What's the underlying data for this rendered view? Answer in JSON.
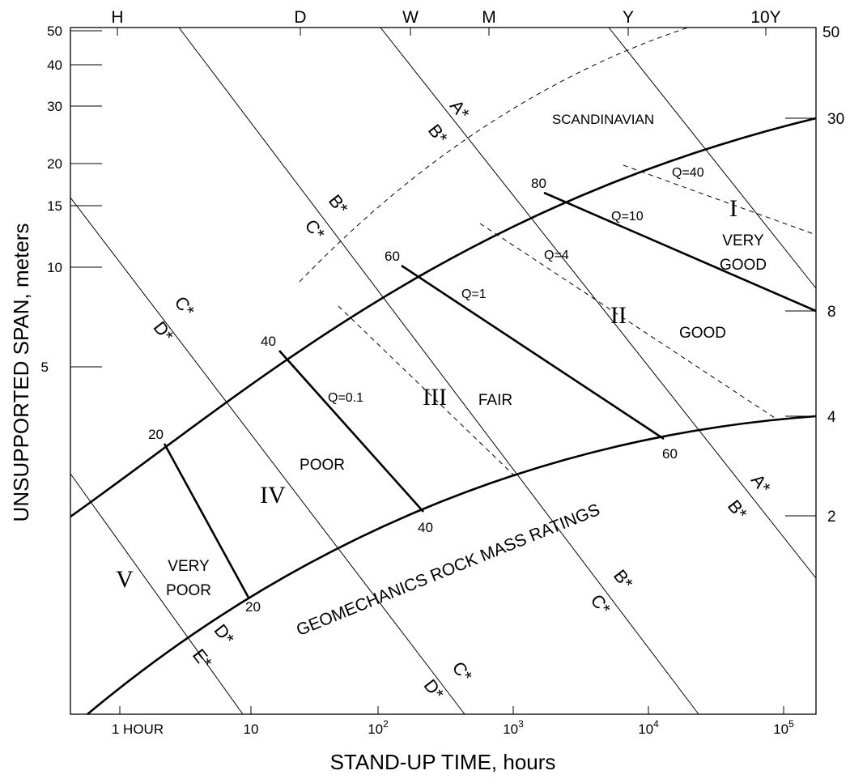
{
  "chart_data": {
    "type": "diagram",
    "xlabel": "STAND-UP TIME, hours",
    "ylabel": "UNSUPPORTED SPAN, meters",
    "x_scale": "log",
    "y_scale": "log",
    "x_ticks": [
      {
        "value": 1,
        "label": "1 HOUR"
      },
      {
        "value": 10,
        "label": "10"
      },
      {
        "value": 100,
        "base": "10",
        "exp": "2"
      },
      {
        "value": 1000,
        "base": "10",
        "exp": "3"
      },
      {
        "value": 10000,
        "base": "10",
        "exp": "4"
      },
      {
        "value": 100000,
        "base": "10",
        "exp": "5"
      }
    ],
    "top_labels": [
      "H",
      "D",
      "W",
      "M",
      "Y",
      "10Y"
    ],
    "left_ticks": [
      "50",
      "40",
      "30",
      "20",
      "15",
      "10",
      "5"
    ],
    "right_ticks": [
      "50",
      "30",
      "8",
      "4",
      "2"
    ],
    "rmr_values": [
      "80",
      "60",
      "40",
      "20",
      "60",
      "40",
      "20"
    ],
    "q_values": [
      "Q=40",
      "Q=10",
      "Q=4",
      "Q=1",
      "Q=0.1"
    ],
    "classes": [
      {
        "numeral": "I",
        "label": [
          "VERY",
          "GOOD"
        ]
      },
      {
        "numeral": "II",
        "label": [
          "GOOD"
        ]
      },
      {
        "numeral": "III",
        "label": [
          "FAIR"
        ]
      },
      {
        "numeral": "IV",
        "label": [
          "POOR"
        ]
      },
      {
        "numeral": "V",
        "label": [
          "VERY",
          "POOR"
        ]
      }
    ],
    "diagonal_labels": [
      "A*",
      "B*",
      "C*",
      "D*",
      "E*"
    ],
    "annotations": {
      "scandinavian": "SCANDINAVIAN",
      "curve": "GEOMECHANICS ROCK MASS RATINGS"
    }
  }
}
